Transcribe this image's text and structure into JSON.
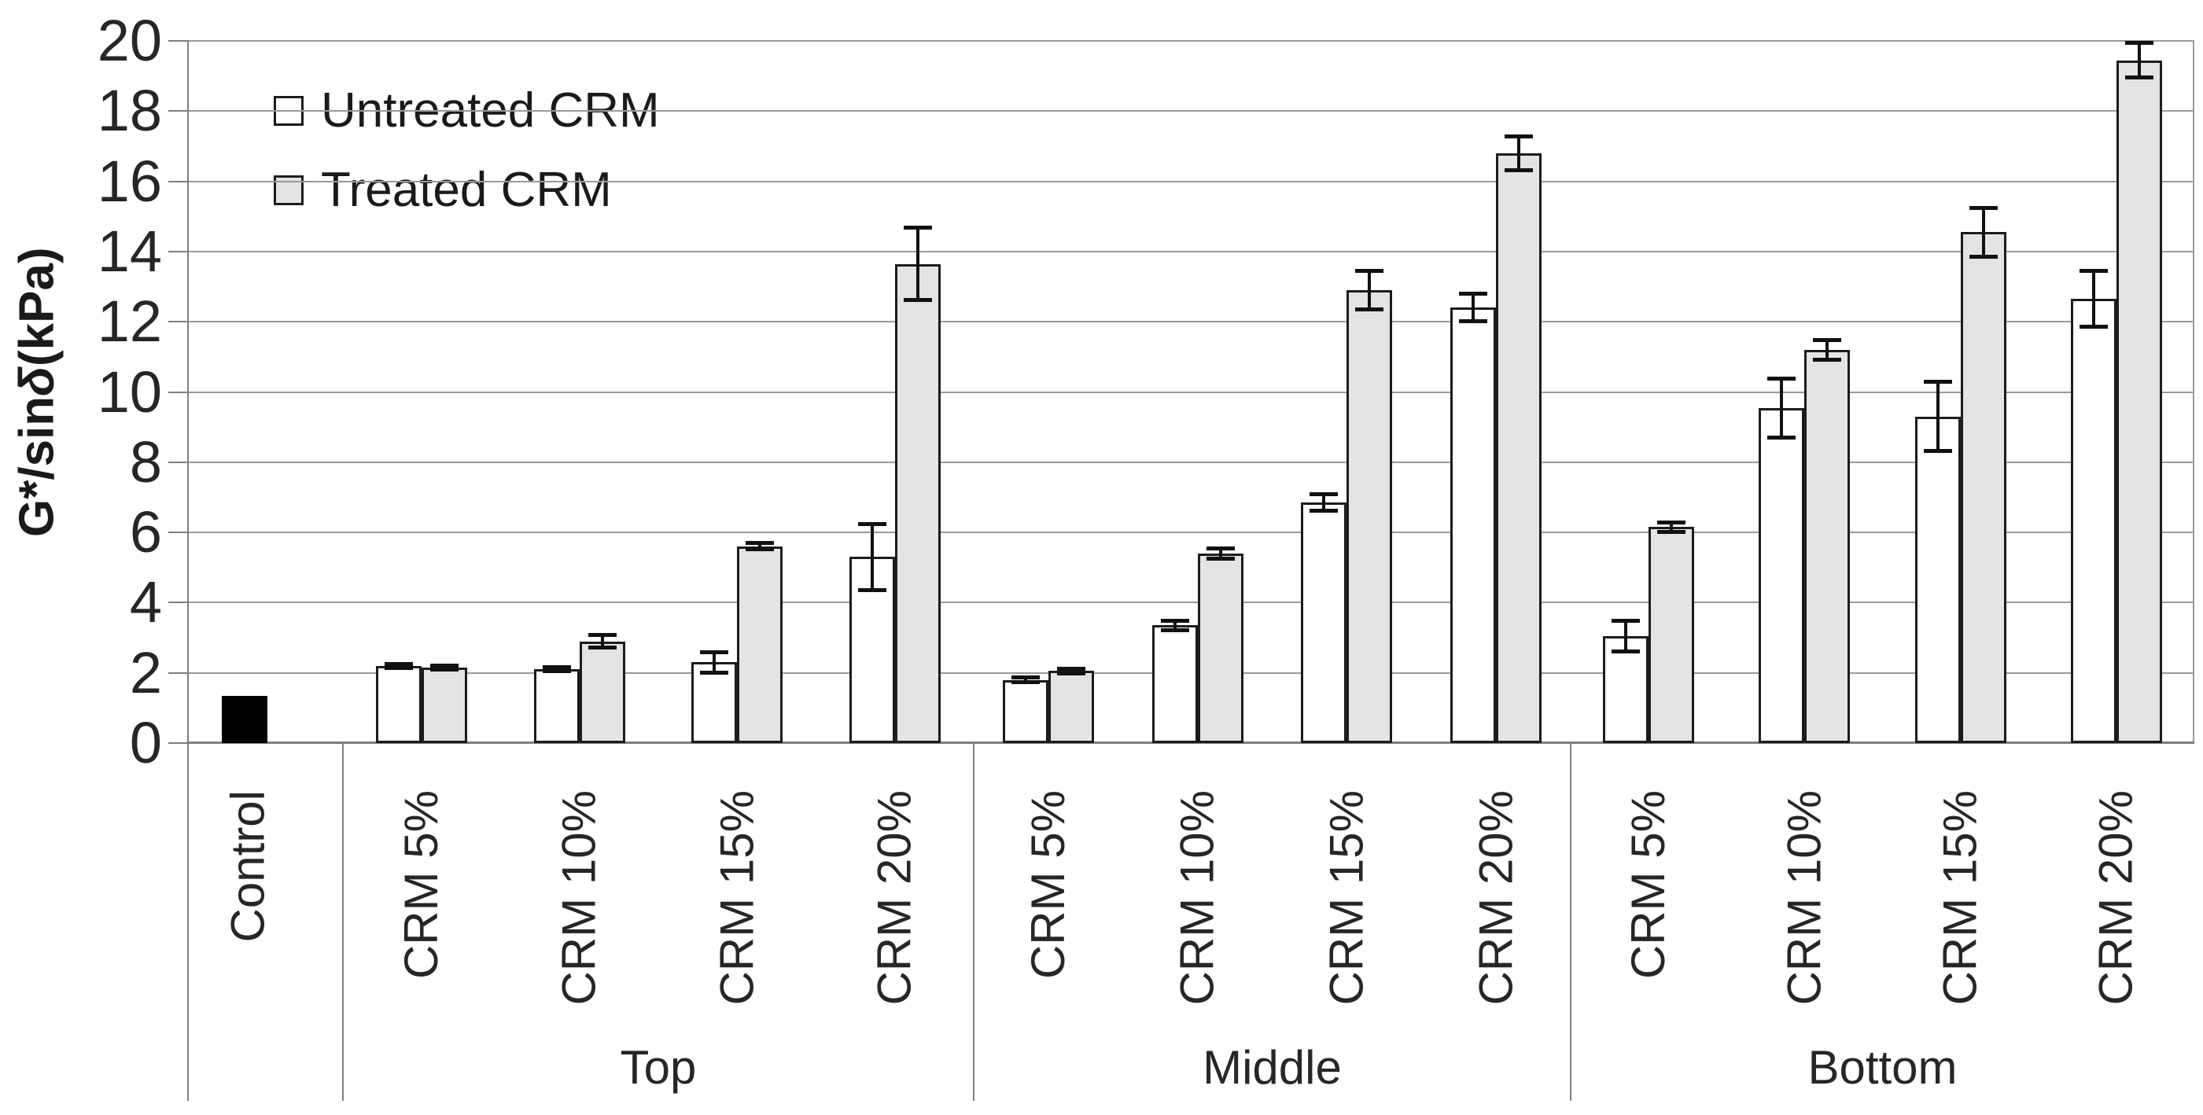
{
  "chart_data": {
    "type": "bar",
    "title": "",
    "ylabel_prefix": "G*/sin ",
    "ylabel_delta": "δ",
    "ylabel_suffix": "(kPa)",
    "ylim": [
      0,
      20
    ],
    "yticks": [
      0,
      2,
      4,
      6,
      8,
      10,
      12,
      14,
      16,
      18,
      20
    ],
    "grid": "horizontal",
    "legend_position": "top-left-inside",
    "legend": [
      {
        "label": "Untreated CRM",
        "fill": "#ffffff"
      },
      {
        "label": "Treated CRM",
        "fill": "#e4e4e4"
      }
    ],
    "control": {
      "label": "Control",
      "value": 1.35,
      "error": 0,
      "fill": "#000000"
    },
    "groups": [
      {
        "label": "Top",
        "categories": [
          "CRM 5%",
          "CRM 10%",
          "CRM 15%",
          "CRM 20%"
        ],
        "series": [
          {
            "name": "Untreated CRM",
            "fill": "#ffffff",
            "values": [
              2.2,
              2.1,
              2.3,
              5.3
            ],
            "errors": [
              0.07,
              0.07,
              0.3,
              0.95
            ]
          },
          {
            "name": "Treated CRM",
            "fill": "#e4e4e4",
            "values": [
              2.15,
              2.9,
              5.6,
              13.65
            ],
            "errors": [
              0.07,
              0.2,
              0.1,
              1.05
            ]
          }
        ]
      },
      {
        "label": "Middle",
        "categories": [
          "CRM 5%",
          "CRM 10%",
          "CRM 15%",
          "CRM 20%"
        ],
        "series": [
          {
            "name": "Untreated CRM",
            "fill": "#ffffff",
            "values": [
              1.8,
              3.35,
              6.85,
              12.4
            ],
            "errors": [
              0.08,
              0.15,
              0.25,
              0.4
            ]
          },
          {
            "name": "Treated CRM",
            "fill": "#e4e4e4",
            "values": [
              2.05,
              5.4,
              12.9,
              16.8
            ],
            "errors": [
              0.07,
              0.15,
              0.55,
              0.5
            ]
          }
        ]
      },
      {
        "label": "Bottom",
        "categories": [
          "CRM 5%",
          "CRM 10%",
          "CRM 15%",
          "CRM 20%"
        ],
        "series": [
          {
            "name": "Untreated CRM",
            "fill": "#ffffff",
            "values": [
              3.05,
              9.55,
              9.3,
              12.65
            ],
            "errors": [
              0.45,
              0.85,
              1.0,
              0.8
            ]
          },
          {
            "name": "Treated CRM",
            "fill": "#e4e4e4",
            "values": [
              6.15,
              11.2,
              14.55,
              19.45
            ],
            "errors": [
              0.15,
              0.3,
              0.7,
              0.5
            ]
          }
        ]
      }
    ],
    "colors": {
      "bar_border": "#1c1c1c",
      "untreated_fill": "#ffffff",
      "treated_fill": "#e4e4e4",
      "control_fill": "#000000",
      "gridline": "#9a9a9a",
      "axis": "#7f7f7f",
      "error_bar": "#111111",
      "text": "#262626"
    }
  }
}
